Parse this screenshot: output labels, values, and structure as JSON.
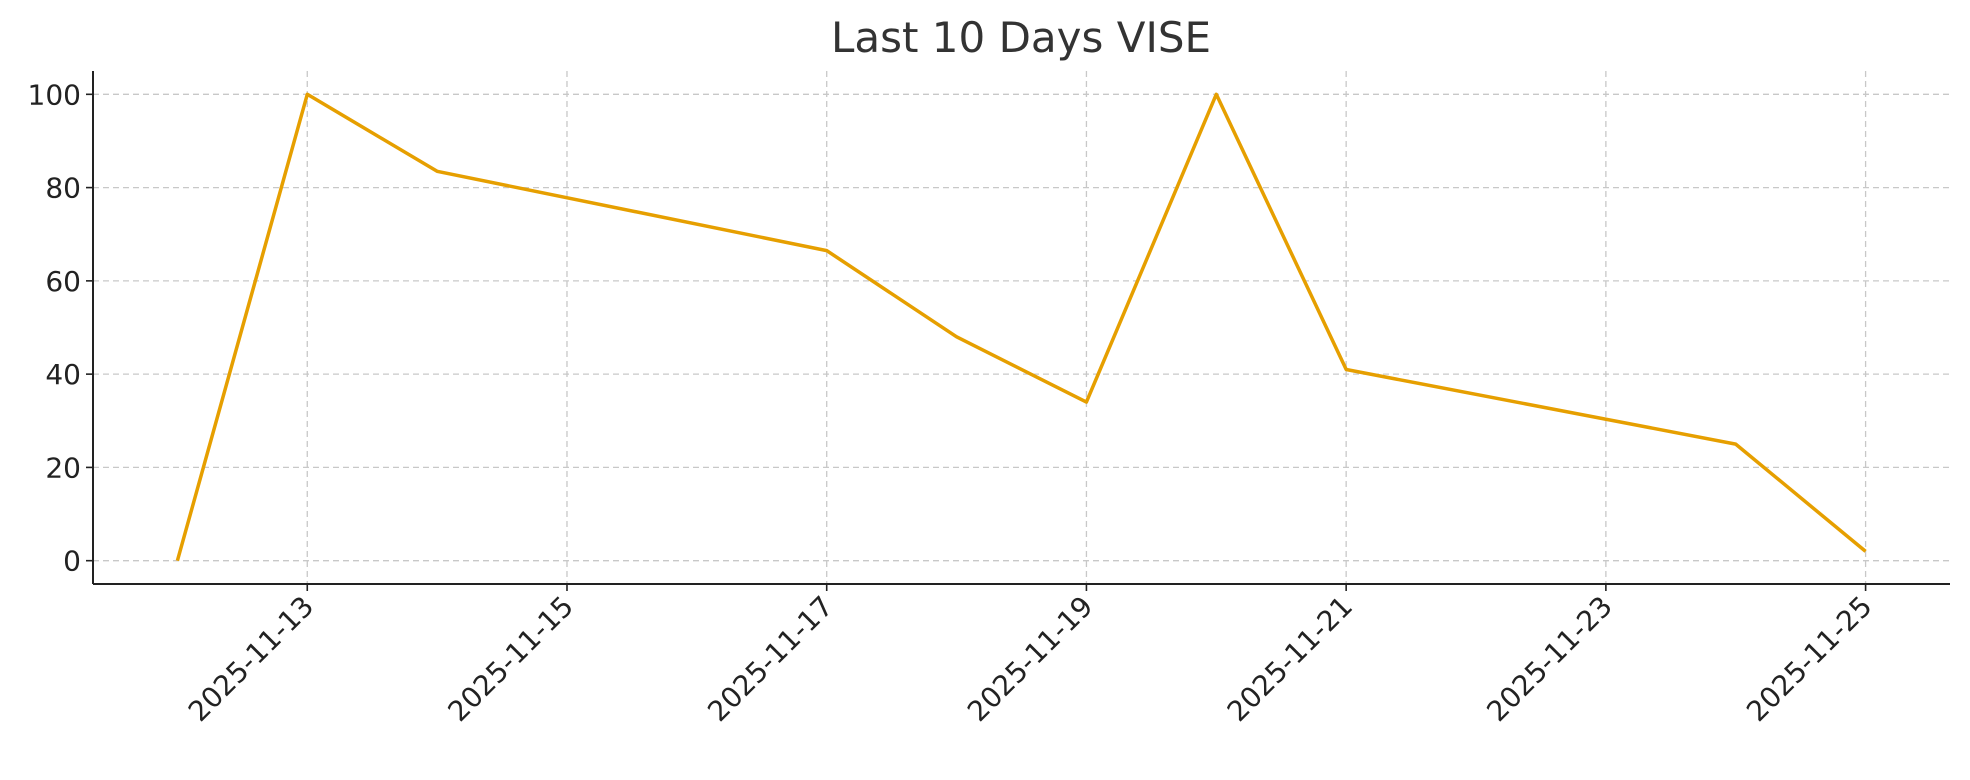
{
  "chart_data": {
    "type": "line",
    "title": "Last 10 Days VISE",
    "x": [
      "2025-11-12",
      "2025-11-13",
      "2025-11-14",
      "2025-11-17",
      "2025-11-18",
      "2025-11-19",
      "2025-11-20",
      "2025-11-21",
      "2025-11-24",
      "2025-11-25"
    ],
    "values": [
      0,
      100,
      83.5,
      66.5,
      48,
      34,
      100,
      41,
      25,
      2
    ],
    "color": "#e69f00",
    "xlim": [
      "2025-11-12",
      "2025-11-25"
    ],
    "xticks": [
      "2025-11-13",
      "2025-11-15",
      "2025-11-17",
      "2025-11-19",
      "2025-11-21",
      "2025-11-23",
      "2025-11-25"
    ],
    "ylim": [
      -5,
      105
    ],
    "yticks": [
      0,
      20,
      40,
      60,
      80,
      100
    ],
    "grid": true
  }
}
